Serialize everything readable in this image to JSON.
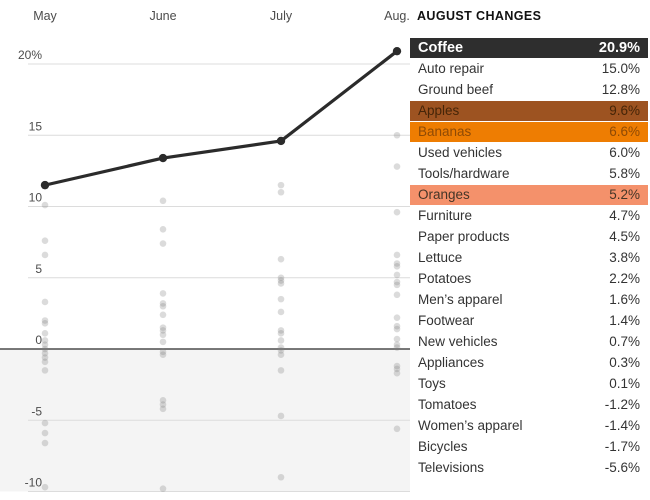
{
  "chart_data": {
    "type": "line",
    "x": [
      "May",
      "June",
      "July",
      "Aug."
    ],
    "series": [
      {
        "name": "Coffee",
        "values": [
          11.5,
          13.4,
          14.6,
          20.9
        ]
      }
    ],
    "scatter_by_month": {
      "May": [
        10.1,
        7.6,
        6.6,
        3.3,
        2.0,
        1.8,
        1.1,
        0.6,
        0.3,
        0.0,
        -0.3,
        -0.6,
        -0.9,
        -1.5,
        -5.2,
        -5.9,
        -6.6,
        -9.7
      ],
      "June": [
        10.4,
        8.4,
        7.4,
        3.9,
        3.2,
        3.0,
        2.4,
        1.5,
        1.3,
        1.0,
        0.5,
        -0.2,
        -0.4,
        -3.6,
        -3.9,
        -4.2,
        -9.8
      ],
      "July": [
        11.5,
        11.0,
        6.3,
        5.0,
        4.8,
        4.6,
        3.5,
        2.6,
        1.3,
        1.1,
        0.6,
        0.1,
        -0.1,
        -0.4,
        -1.5,
        -4.7,
        -9.0
      ],
      "Aug.": [
        15.0,
        12.8,
        9.6,
        6.6,
        6.0,
        5.8,
        5.2,
        4.7,
        4.5,
        3.8,
        2.2,
        1.6,
        1.4,
        0.7,
        0.3,
        0.1,
        -1.2,
        -1.4,
        -1.7,
        -5.6
      ]
    },
    "yticks": [
      {
        "label": "20%",
        "value": 20
      },
      {
        "label": "15",
        "value": 15
      },
      {
        "label": "10",
        "value": 10
      },
      {
        "label": "5",
        "value": 5
      },
      {
        "label": "0",
        "value": 0
      },
      {
        "label": "-5",
        "value": -5
      },
      {
        "label": "-10",
        "value": -10
      }
    ],
    "ylim": [
      -10.5,
      22
    ],
    "grid": true,
    "legend_position": "none",
    "colors": {
      "line": "#2b2b2b",
      "scatter_dot": "#7f7f7f",
      "gridline": "#dcdcdc",
      "zero_line": "#4d4d4d",
      "negative_shade": "#f4f4f4"
    }
  },
  "august_changes": {
    "title": "AUGUST CHANGES",
    "highlight_colors": {
      "coffee": "#2e2e2e",
      "apples": "#9d5321",
      "bananas": "#ee7d02",
      "oranges": "#f4916b"
    },
    "rows": [
      {
        "label": "Coffee",
        "value": "20.9%",
        "highlight": "coffee"
      },
      {
        "label": "Auto repair",
        "value": "15.0%"
      },
      {
        "label": "Ground beef",
        "value": "12.8%"
      },
      {
        "label": "Apples",
        "value": "9.6%",
        "highlight": "apples"
      },
      {
        "label": "Bananas",
        "value": "6.6%",
        "highlight": "bananas"
      },
      {
        "label": "Used vehicles",
        "value": "6.0%"
      },
      {
        "label": "Tools/hardware",
        "value": "5.8%"
      },
      {
        "label": "Oranges",
        "value": "5.2%",
        "highlight": "oranges"
      },
      {
        "label": "Furniture",
        "value": "4.7%"
      },
      {
        "label": "Paper products",
        "value": "4.5%"
      },
      {
        "label": "Lettuce",
        "value": "3.8%"
      },
      {
        "label": "Potatoes",
        "value": "2.2%"
      },
      {
        "label": "Men’s apparel",
        "value": "1.6%"
      },
      {
        "label": "Footwear",
        "value": "1.4%"
      },
      {
        "label": "New vehicles",
        "value": "0.7%"
      },
      {
        "label": "Appliances",
        "value": "0.3%"
      },
      {
        "label": "Toys",
        "value": "0.1%"
      },
      {
        "label": "Tomatoes",
        "value": "-1.2%"
      },
      {
        "label": "Women’s apparel",
        "value": "-1.4%"
      },
      {
        "label": "Bicycles",
        "value": "-1.7%"
      },
      {
        "label": "Televisions",
        "value": "-5.6%"
      }
    ]
  }
}
